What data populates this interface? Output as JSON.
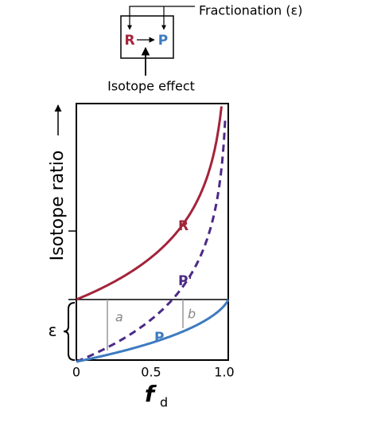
{
  "diagram": {
    "box": {
      "reactant": "R",
      "product": "P"
    },
    "fractionation_label": "Fractionation (ε)",
    "isotope_effect_label": "Isotope effect",
    "y_axis_label": "Isotope ratio",
    "curves": [
      "R",
      "P'",
      "P"
    ],
    "segments": [
      "a",
      "b"
    ],
    "epsilon": "ε",
    "x_ticks": [
      "0",
      "0.5",
      "1.0"
    ],
    "x_axis_label": {
      "base": "f",
      "subscript": "d"
    }
  }
}
